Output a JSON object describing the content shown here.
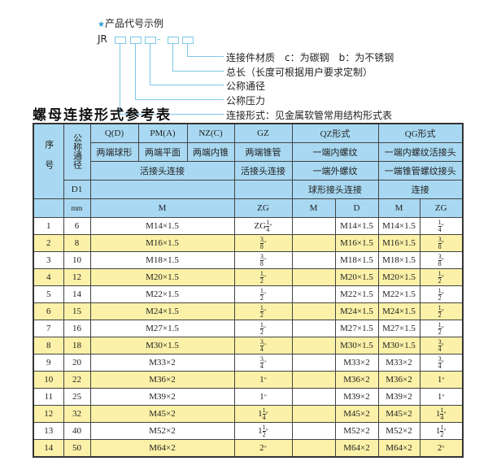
{
  "legend": {
    "heading": "产品代号示例",
    "code_prefix": "JR",
    "code_dash": "-",
    "items": [
      "连接件材质　c：为碳钢　b：为不锈钢",
      "总长（长度可根据用户要求定制）",
      "公称通径",
      "公称压力",
      "连接形式：见金属软管常用结构形式表"
    ]
  },
  "title": "螺母连接形式参考表",
  "header": {
    "seq": "序号",
    "dn": "公称通径",
    "d1": "D1",
    "mm": "mm",
    "qd": "Q(D)",
    "pm": "PM(A)",
    "nz": "NZ(C)",
    "gz": "GZ",
    "qz": "QZ形式",
    "qg": "QG形式",
    "qd2": "两端球形",
    "pm2": "两端平面",
    "nz2": "两端内锥",
    "gz2": "两端锥管",
    "qz2": "一端内螺纹",
    "qg2": "一端内螺纹活接头",
    "m3": "活接头连接",
    "gz3": "活接头连接",
    "qz3": "一端外螺纹",
    "qg3": "一端锥管螺纹接头",
    "qz4": "球形接头连接",
    "qg4": "连接",
    "m5": "M",
    "gz5": "ZG",
    "qzm": "M",
    "qzd": "D",
    "qgm": "M",
    "qgzg": "ZG"
  },
  "rows": [
    {
      "no": "1",
      "dn": "6",
      "m": "M14×1.5",
      "zg": {
        "pre": "ZG",
        "w": "",
        "n": "1",
        "d": "4"
      },
      "qzm": "",
      "qzd": "M14×1.5",
      "qgm": "M14×1.5",
      "qgzg": {
        "w": "",
        "n": "1",
        "d": "4"
      }
    },
    {
      "no": "2",
      "dn": "8",
      "m": "M16×1.5",
      "zg": {
        "pre": "",
        "w": "",
        "n": "3",
        "d": "8"
      },
      "qzm": "",
      "qzd": "M16×1.5",
      "qgm": "M16×1.5",
      "qgzg": {
        "w": "",
        "n": "3",
        "d": "8"
      }
    },
    {
      "no": "3",
      "dn": "10",
      "m": "M18×1.5",
      "zg": {
        "pre": "",
        "w": "",
        "n": "3",
        "d": "8"
      },
      "qzm": "",
      "qzd": "M18×1.5",
      "qgm": "M18×1.5",
      "qgzg": {
        "w": "",
        "n": "3",
        "d": "8"
      }
    },
    {
      "no": "4",
      "dn": "12",
      "m": "M20×1.5",
      "zg": {
        "pre": "",
        "w": "",
        "n": "1",
        "d": "2"
      },
      "qzm": "",
      "qzd": "M20×1.5",
      "qgm": "M20×1.5",
      "qgzg": {
        "w": "",
        "n": "1",
        "d": "2"
      }
    },
    {
      "no": "5",
      "dn": "14",
      "m": "M22×1.5",
      "zg": {
        "pre": "",
        "w": "",
        "n": "1",
        "d": "2"
      },
      "qzm": "",
      "qzd": "M22×1.5",
      "qgm": "M22×1.5",
      "qgzg": {
        "w": "",
        "n": "1",
        "d": "2"
      }
    },
    {
      "no": "6",
      "dn": "15",
      "m": "M24×1.5",
      "zg": {
        "pre": "",
        "w": "",
        "n": "1",
        "d": "2"
      },
      "qzm": "",
      "qzd": "M24×1.5",
      "qgm": "M24×1.5",
      "qgzg": {
        "w": "",
        "n": "1",
        "d": "2"
      }
    },
    {
      "no": "7",
      "dn": "16",
      "m": "M27×1.5",
      "zg": {
        "pre": "",
        "w": "",
        "n": "1",
        "d": "2"
      },
      "qzm": "",
      "qzd": "M27×1.5",
      "qgm": "M27×1.5",
      "qgzg": {
        "w": "",
        "n": "1",
        "d": "2"
      }
    },
    {
      "no": "8",
      "dn": "18",
      "m": "M30×1.5",
      "zg": {
        "pre": "",
        "w": "",
        "n": "3",
        "d": "4"
      },
      "qzm": "",
      "qzd": "M30×1.5",
      "qgm": "M30×1.5",
      "qgzg": {
        "w": "",
        "n": "3",
        "d": "4"
      }
    },
    {
      "no": "9",
      "dn": "20",
      "m": "M33×2",
      "zg": {
        "pre": "",
        "w": "",
        "n": "3",
        "d": "4"
      },
      "qzm": "",
      "qzd": "M33×2",
      "qgm": "M33×2",
      "qgzg": {
        "w": "",
        "n": "3",
        "d": "4"
      }
    },
    {
      "no": "10",
      "dn": "22",
      "m": "M36×2",
      "zg": {
        "pre": "",
        "w": "1",
        "n": "",
        "d": ""
      },
      "qzm": "",
      "qzd": "M36×2",
      "qgm": "M36×2",
      "qgzg": {
        "w": "1",
        "n": "",
        "d": ""
      }
    },
    {
      "no": "11",
      "dn": "25",
      "m": "M39×2",
      "zg": {
        "pre": "",
        "w": "1",
        "n": "",
        "d": ""
      },
      "qzm": "",
      "qzd": "M39×2",
      "qgm": "M39×2",
      "qgzg": {
        "w": "1",
        "n": "",
        "d": ""
      }
    },
    {
      "no": "12",
      "dn": "32",
      "m": "M45×2",
      "zg": {
        "pre": "",
        "w": "1",
        "n": "1",
        "d": "4"
      },
      "qzm": "",
      "qzd": "M45×2",
      "qgm": "M45×2",
      "qgzg": {
        "w": "1",
        "n": "1",
        "d": "4"
      }
    },
    {
      "no": "13",
      "dn": "40",
      "m": "M52×2",
      "zg": {
        "pre": "",
        "w": "1",
        "n": "1",
        "d": "2"
      },
      "qzm": "",
      "qzd": "M52×2",
      "qgm": "M52×2",
      "qgzg": {
        "w": "1",
        "n": "1",
        "d": "2"
      }
    },
    {
      "no": "14",
      "dn": "50",
      "m": "M64×2",
      "zg": {
        "pre": "",
        "w": "2",
        "n": "",
        "d": ""
      },
      "qzm": "",
      "qzd": "M64×2",
      "qgm": "M64×2",
      "qgzg": {
        "w": "2",
        "n": "",
        "d": ""
      }
    }
  ],
  "inch_mark": "\"",
  "colors": {
    "header": "#a9d9f2",
    "stripe": "#fbf1a8",
    "legend_line": "#7cc8e8",
    "star": "#2a9fd6"
  }
}
